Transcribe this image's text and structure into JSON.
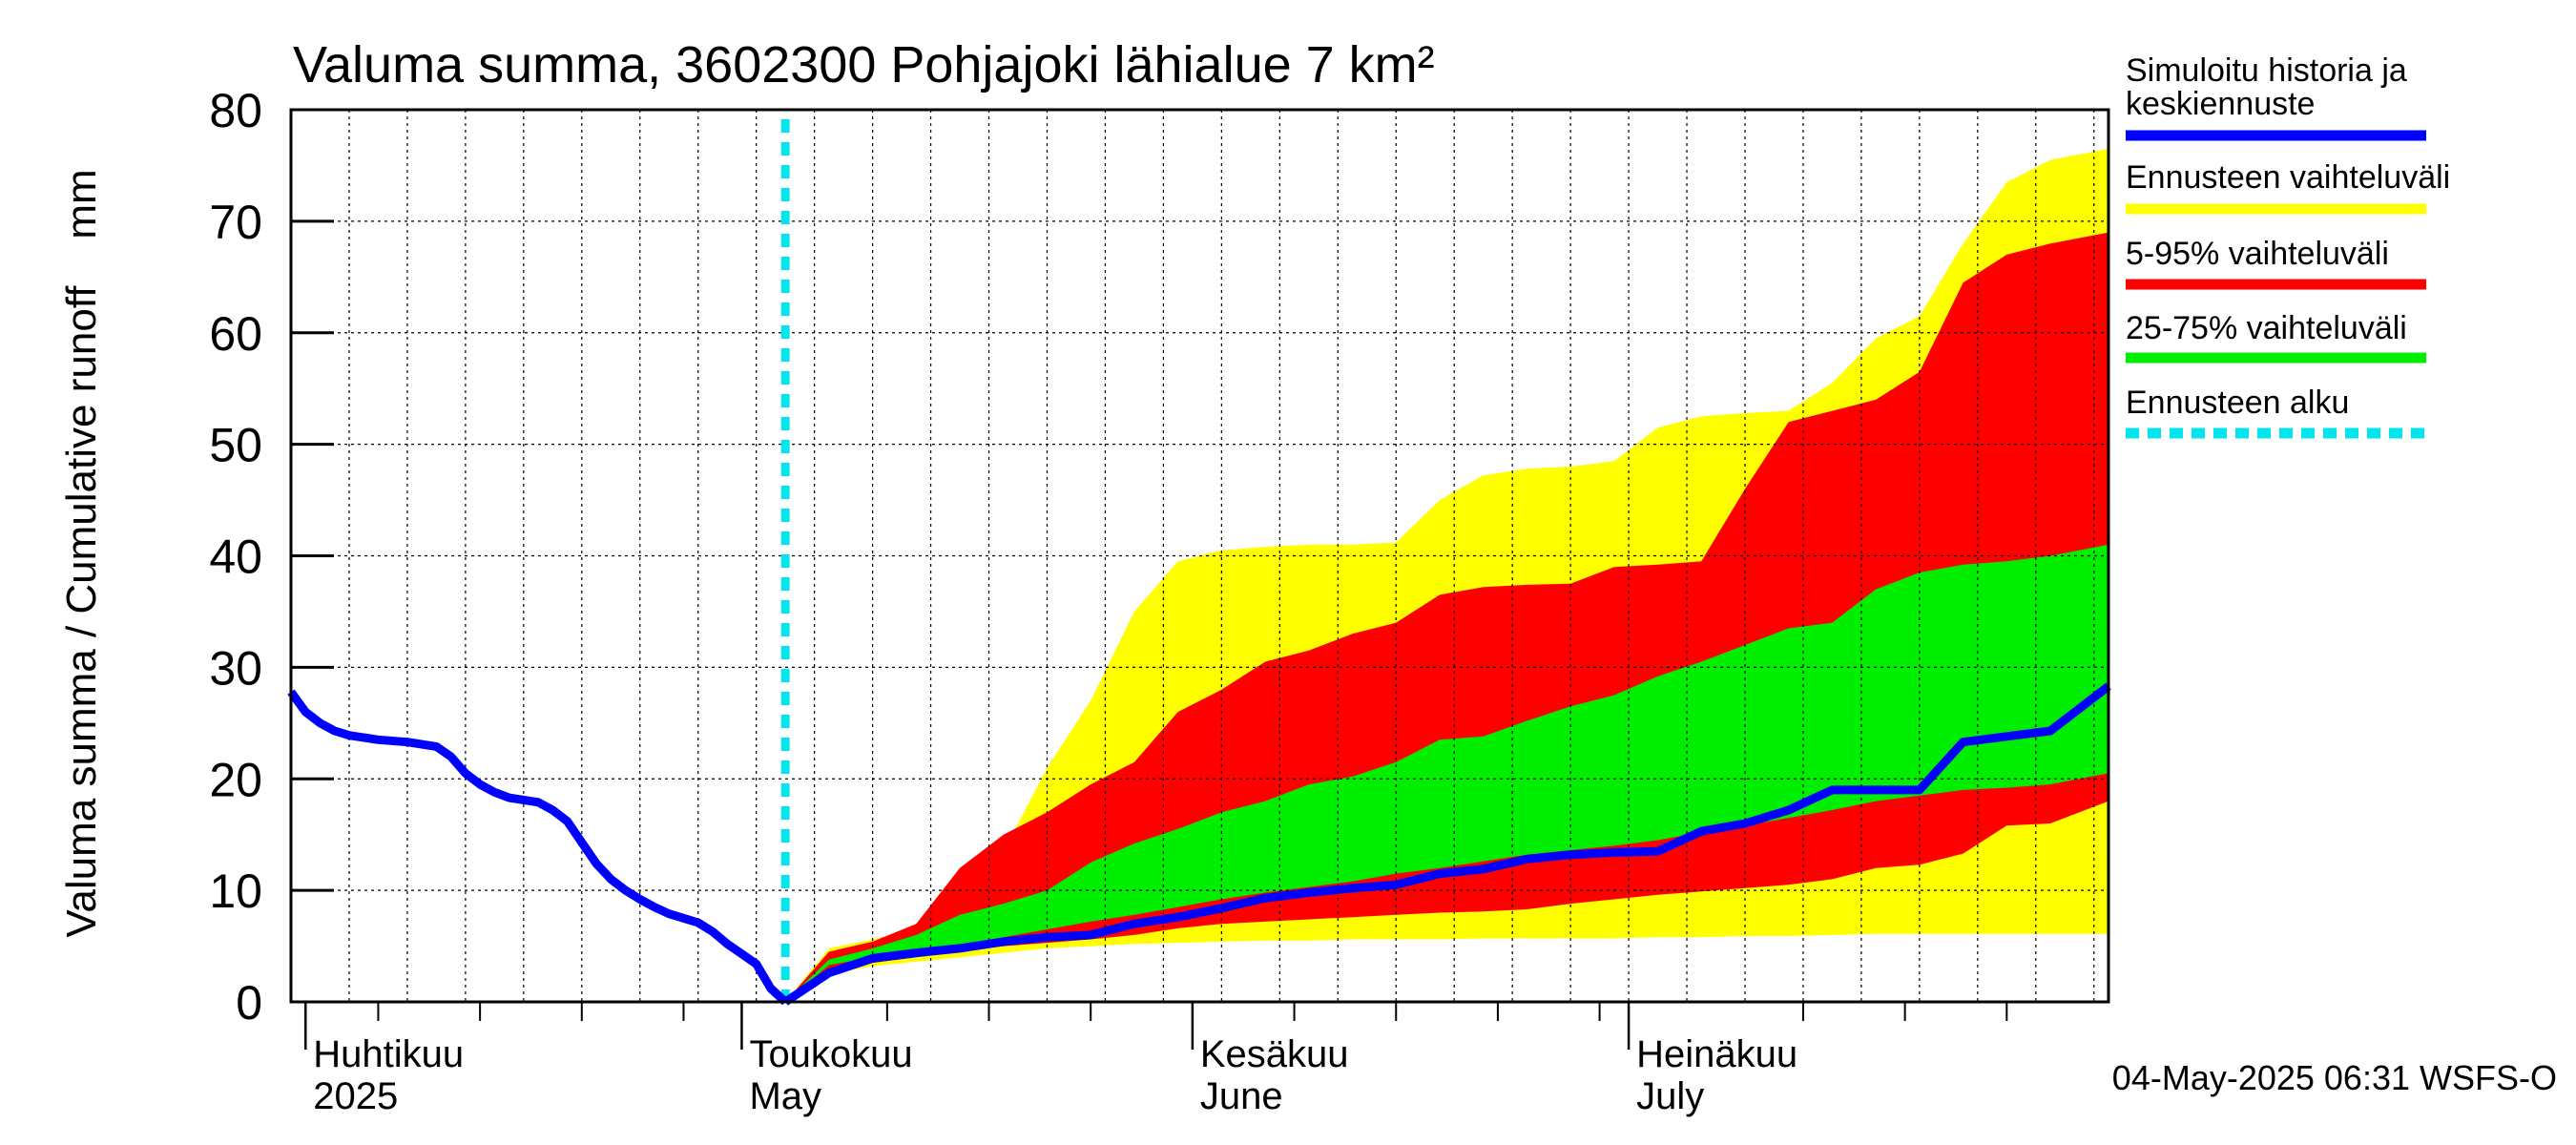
{
  "chart_data": {
    "type": "area",
    "title": "Valuma summa, 3602300 Pohjajoki lähialue 7 km²",
    "ylabel": "Valuma summa / Cumulative runoff    mm",
    "ylim": [
      0,
      80
    ],
    "y_ticks": [
      0,
      10,
      20,
      30,
      40,
      50,
      60,
      70,
      80
    ],
    "grid": true,
    "legend_position": "right",
    "x_start": "2025-03-31",
    "x_end": "2025-08-03",
    "forecast_start": "2025-05-04",
    "month_labels": [
      {
        "date": "2025-04-01",
        "fi": "Huhtikuu",
        "en": "2025"
      },
      {
        "date": "2025-05-01",
        "fi": "Toukokuu",
        "en": "May"
      },
      {
        "date": "2025-06-01",
        "fi": "Kesäkuu",
        "en": "June"
      },
      {
        "date": "2025-07-01",
        "fi": "Heinäkuu",
        "en": "July"
      }
    ],
    "week_ticks": [
      "2025-04-06",
      "2025-04-13",
      "2025-04-20",
      "2025-04-27",
      "2025-05-11",
      "2025-05-18",
      "2025-05-25",
      "2025-06-08",
      "2025-06-15",
      "2025-06-22",
      "2025-06-29",
      "2025-07-13",
      "2025-07-20",
      "2025-07-27"
    ],
    "legend": [
      {
        "label": "Simuloitu historia ja keskiennuste",
        "color": "#0000ff",
        "style": "line"
      },
      {
        "label": "Ennusteen vaihteluväli",
        "color": "#ffff00",
        "style": "band"
      },
      {
        "label": "5-95% vaihteluväli",
        "color": "#ff0000",
        "style": "band"
      },
      {
        "label": "25-75% vaihteluväli",
        "color": "#00ee00",
        "style": "band"
      },
      {
        "label": "Ennusteen alku",
        "color": "#00e5ee",
        "style": "dashed"
      }
    ],
    "history": {
      "name": "Simuloitu historia ja keskiennuste",
      "points": [
        [
          "2025-03-31",
          27.8
        ],
        [
          "2025-04-01",
          26.0
        ],
        [
          "2025-04-02",
          25.0
        ],
        [
          "2025-04-03",
          24.3
        ],
        [
          "2025-04-04",
          23.9
        ],
        [
          "2025-04-06",
          23.5
        ],
        [
          "2025-04-08",
          23.3
        ],
        [
          "2025-04-10",
          22.9
        ],
        [
          "2025-04-11",
          22.0
        ],
        [
          "2025-04-12",
          20.5
        ],
        [
          "2025-04-13",
          19.5
        ],
        [
          "2025-04-14",
          18.8
        ],
        [
          "2025-04-15",
          18.3
        ],
        [
          "2025-04-17",
          17.9
        ],
        [
          "2025-04-18",
          17.2
        ],
        [
          "2025-04-19",
          16.2
        ],
        [
          "2025-04-20",
          14.3
        ],
        [
          "2025-04-21",
          12.4
        ],
        [
          "2025-04-22",
          11.0
        ],
        [
          "2025-04-23",
          10.0
        ],
        [
          "2025-04-24",
          9.2
        ],
        [
          "2025-04-25",
          8.5
        ],
        [
          "2025-04-26",
          7.9
        ],
        [
          "2025-04-27",
          7.5
        ],
        [
          "2025-04-28",
          7.1
        ],
        [
          "2025-04-29",
          6.3
        ],
        [
          "2025-04-30",
          5.2
        ],
        [
          "2025-05-01",
          4.3
        ],
        [
          "2025-05-02",
          3.4
        ],
        [
          "2025-05-03",
          1.2
        ],
        [
          "2025-05-04",
          0.0
        ]
      ]
    },
    "forecast": {
      "dates": [
        "2025-05-04",
        "2025-05-07",
        "2025-05-10",
        "2025-05-13",
        "2025-05-16",
        "2025-05-19",
        "2025-05-22",
        "2025-05-25",
        "2025-05-28",
        "2025-05-31",
        "2025-06-03",
        "2025-06-06",
        "2025-06-09",
        "2025-06-12",
        "2025-06-15",
        "2025-06-18",
        "2025-06-21",
        "2025-06-24",
        "2025-06-27",
        "2025-06-30",
        "2025-07-03",
        "2025-07-06",
        "2025-07-09",
        "2025-07-12",
        "2025-07-15",
        "2025-07-18",
        "2025-07-21",
        "2025-07-24",
        "2025-07-27",
        "2025-07-30",
        "2025-08-03"
      ],
      "min": [
        0,
        2.5,
        3.2,
        3.6,
        4.0,
        4.4,
        4.8,
        5.0,
        5.2,
        5.3,
        5.4,
        5.5,
        5.5,
        5.6,
        5.6,
        5.6,
        5.7,
        5.7,
        5.7,
        5.7,
        5.8,
        5.8,
        5.9,
        5.9,
        6.0,
        6.1,
        6.1,
        6.1,
        6.1,
        6.1,
        6.1
      ],
      "p5": [
        0,
        2.8,
        3.5,
        4.0,
        4.5,
        5.0,
        5.3,
        5.6,
        6.0,
        6.6,
        7.0,
        7.2,
        7.4,
        7.6,
        7.8,
        8.0,
        8.1,
        8.3,
        8.8,
        9.2,
        9.6,
        9.9,
        10.2,
        10.5,
        11.0,
        12.0,
        12.3,
        13.3,
        15.8,
        16.0,
        18.0
      ],
      "p25": [
        0,
        3.3,
        4.0,
        4.5,
        5.0,
        5.8,
        6.5,
        7.2,
        7.8,
        8.5,
        9.2,
        9.8,
        10.3,
        10.8,
        11.5,
        12.0,
        12.6,
        13.2,
        13.6,
        14.0,
        14.5,
        15.2,
        15.8,
        16.5,
        17.2,
        18.0,
        18.5,
        19.0,
        19.2,
        19.5,
        20.5
      ],
      "median": [
        0,
        2.6,
        3.9,
        4.4,
        4.8,
        5.4,
        5.8,
        6.0,
        7.0,
        7.6,
        8.4,
        9.3,
        9.8,
        10.2,
        10.5,
        11.5,
        11.9,
        12.8,
        13.2,
        13.4,
        13.5,
        15.3,
        16.0,
        17.2,
        19.0,
        19.0,
        19.0,
        23.3,
        23.8,
        24.3,
        28.3
      ],
      "p75": [
        0,
        3.8,
        4.8,
        6.0,
        7.8,
        8.8,
        10.0,
        12.5,
        14.2,
        15.5,
        17.0,
        18.0,
        19.5,
        20.2,
        21.5,
        23.5,
        23.8,
        25.2,
        26.5,
        27.5,
        29.2,
        30.5,
        32.0,
        33.5,
        34.0,
        37.0,
        38.5,
        39.2,
        39.5,
        40.0,
        41.0
      ],
      "p95": [
        0,
        4.5,
        5.4,
        7.0,
        12.0,
        15.0,
        17.0,
        19.5,
        21.5,
        26.0,
        28.0,
        30.5,
        31.5,
        33.0,
        34.0,
        36.5,
        37.2,
        37.4,
        37.5,
        39.0,
        39.2,
        39.5,
        46.0,
        52.0,
        53.0,
        54.0,
        56.5,
        64.5,
        67.0,
        68.0,
        69.0
      ],
      "max": [
        0,
        4.8,
        5.6,
        6.5,
        10.0,
        13.5,
        21.0,
        27.0,
        35.0,
        39.5,
        40.5,
        40.8,
        41.0,
        41.0,
        41.2,
        45.0,
        47.2,
        47.8,
        48.0,
        48.5,
        51.5,
        52.5,
        52.8,
        53.0,
        55.5,
        59.5,
        61.5,
        68.0,
        73.5,
        75.5,
        76.5
      ]
    }
  },
  "footer": {
    "timestamp": "04-May-2025 06:31 WSFS-O"
  }
}
